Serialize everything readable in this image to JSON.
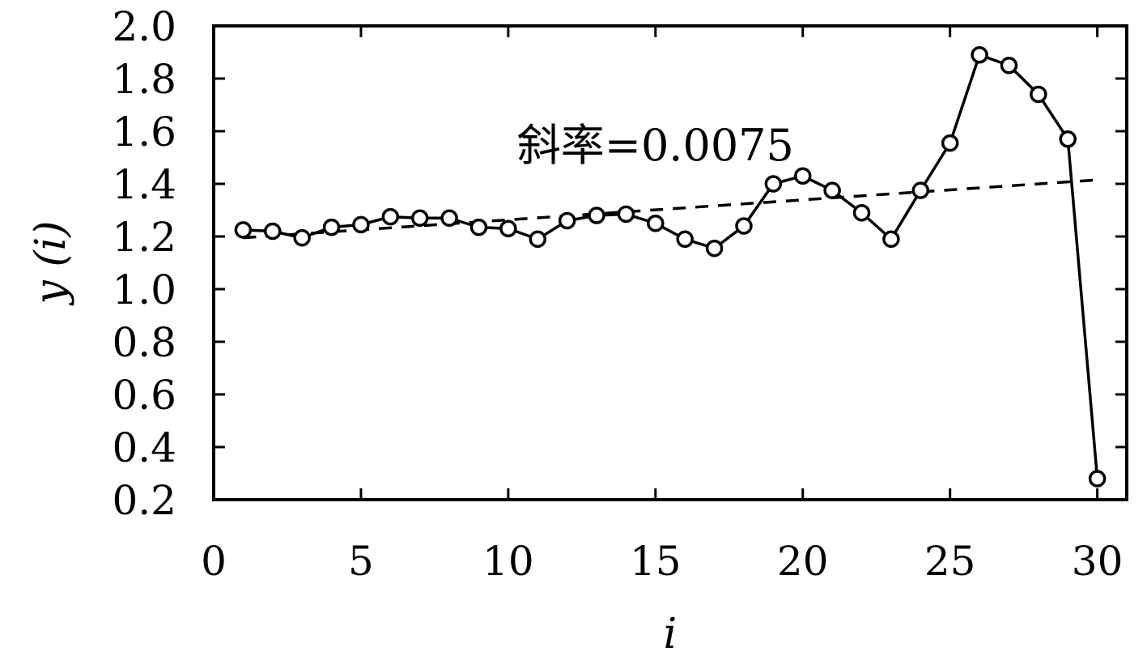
{
  "chart_data": {
    "type": "line",
    "title": "",
    "xlabel": "i",
    "ylabel": "y (i)",
    "xlim": [
      0,
      31
    ],
    "ylim": [
      0.2,
      2.0
    ],
    "xticks": [
      0,
      5,
      10,
      15,
      20,
      25,
      30
    ],
    "xtick_labels": [
      "0",
      "5",
      "10",
      "15",
      "20",
      "25",
      "30"
    ],
    "yticks": [
      0.2,
      0.4,
      0.6,
      0.8,
      1.0,
      1.2,
      1.4,
      1.6,
      1.8,
      2.0
    ],
    "ytick_labels": [
      "0.2",
      "0.4",
      "0.6",
      "0.8",
      "1.0",
      "1.2",
      "1.4",
      "1.6",
      "1.8",
      "2.0"
    ],
    "grid": false,
    "legend": "none",
    "series": [
      {
        "style": "solid line with open circle markers",
        "x": [
          1,
          2,
          3,
          4,
          5,
          6,
          7,
          8,
          9,
          10,
          11,
          12,
          13,
          14,
          15,
          16,
          17,
          18,
          19,
          20,
          21,
          22,
          23,
          24,
          25,
          26,
          27,
          28,
          29,
          30
        ],
        "y": [
          1.225,
          1.22,
          1.195,
          1.235,
          1.245,
          1.275,
          1.27,
          1.27,
          1.235,
          1.23,
          1.19,
          1.26,
          1.28,
          1.285,
          1.25,
          1.19,
          1.155,
          1.24,
          1.4,
          1.43,
          1.375,
          1.29,
          1.19,
          1.375,
          1.555,
          1.89,
          1.85,
          1.74,
          1.57,
          0.28
        ]
      },
      {
        "style": "dashed trend line",
        "x": [
          1,
          30
        ],
        "y": [
          1.195,
          1.415
        ]
      }
    ],
    "annotations": [
      {
        "text": "斜率=0.0075",
        "x": 15,
        "y": 1.49
      }
    ]
  }
}
